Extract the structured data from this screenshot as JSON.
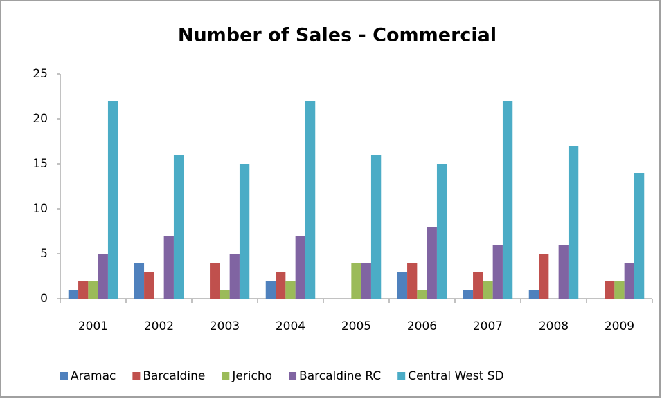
{
  "chart_data": {
    "type": "bar",
    "title": "Number of Sales - Commercial",
    "categories": [
      "2001",
      "2002",
      "2003",
      "2004",
      "2005",
      "2006",
      "2007",
      "2008",
      "2009"
    ],
    "series": [
      {
        "name": "Aramac",
        "color": "#4f81bd",
        "values": [
          1,
          4,
          0,
          2,
          0,
          3,
          1,
          1,
          0
        ]
      },
      {
        "name": "Barcaldine",
        "color": "#c0504d",
        "values": [
          2,
          3,
          4,
          3,
          0,
          4,
          3,
          5,
          2
        ]
      },
      {
        "name": "Jericho",
        "color": "#9bbb59",
        "values": [
          2,
          0,
          1,
          2,
          4,
          1,
          2,
          0,
          2
        ]
      },
      {
        "name": "Barcaldine RC",
        "color": "#8064a2",
        "values": [
          5,
          7,
          5,
          7,
          4,
          8,
          6,
          6,
          4
        ]
      },
      {
        "name": "Central West SD",
        "color": "#4bacc6",
        "values": [
          22,
          16,
          15,
          22,
          16,
          15,
          22,
          17,
          14
        ]
      }
    ],
    "ylim": [
      0,
      25
    ],
    "yticks": [
      0,
      5,
      10,
      15,
      20,
      25
    ],
    "grid": false,
    "legend": "bottom"
  }
}
